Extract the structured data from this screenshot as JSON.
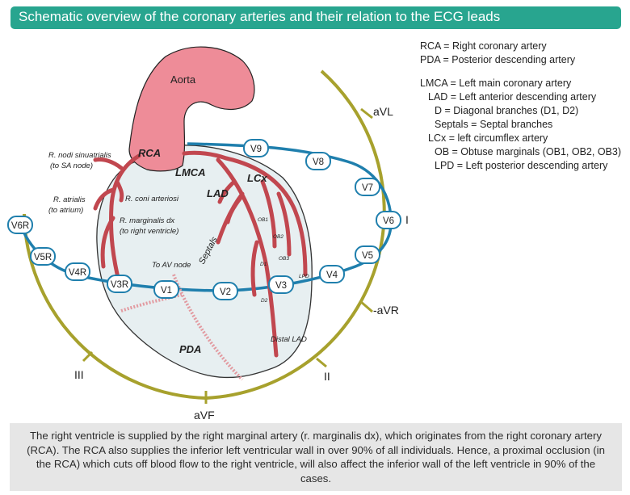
{
  "title": "Schematic overview of the coronary arteries and their relation to the ECG leads",
  "legend": [
    "RCA = Right coronary artery",
    "PDA = Posterior descending artery",
    "LMCA = Left main coronary artery",
    "LAD = Left anterior descending artery",
    "D = Diagonal branches (D1, D2)",
    "Septals = Septal branches",
    "LCx = left circumflex artery",
    "OB = Obtuse marginals (OB1, OB2, OB3)",
    "LPD = Left posterior descending artery"
  ],
  "colors": {
    "accent": "#28a58f",
    "aorta": "#ee8c98",
    "artery": "#c1474f",
    "heart": "#e7eff1",
    "horizontal_plane": "#1f7fad",
    "frontal_plane": "#a7a12d"
  },
  "diagram": {
    "aorta": "Aorta",
    "rca": "RCA",
    "lmca": "LMCA",
    "lad": "LAD",
    "lcx": "LCx",
    "pda": "PDA",
    "septals": "Septals",
    "distal_lad": "Distal LAD",
    "r_nodi_1": "R. nodi sinuatrialis",
    "r_nodi_2": "(to SA node)",
    "r_atrialis_1": "R. atrialis",
    "r_atrialis_2": "(to atrium)",
    "r_coni": "R. coni arteriosi",
    "r_marg_1": "R. marginalis dx",
    "r_marg_2": "(to right ventricle)",
    "to_av": "To AV node",
    "ob1": "OB1",
    "ob2": "OB2",
    "ob3": "OB3",
    "d1": "D1",
    "d2": "D2",
    "lpd": "LPD"
  },
  "leads_horizontal": [
    "V1",
    "V2",
    "V3",
    "V4",
    "V5",
    "V6",
    "V7",
    "V8",
    "V9",
    "V3R",
    "V4R",
    "V5R",
    "V6R"
  ],
  "leads_frontal": [
    "aVL",
    "I",
    "-aVR",
    "II",
    "aVF",
    "III"
  ],
  "caption": "The right ventricle is supplied by the right marginal artery (r. marginalis dx), which originates from the right coronary artery (RCA). The RCA also supplies the inferior left ventricular wall in over 90% of all individuals. Hence, a proximal occlusion (in the RCA) which cuts off blood flow to the right ventricle, will also affect the inferior wall of the left ventricle in 90% of the cases."
}
